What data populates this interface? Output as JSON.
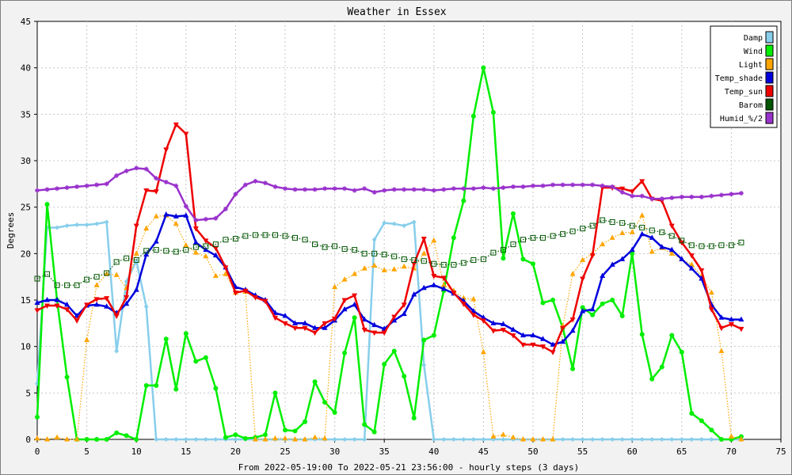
{
  "chart_data": {
    "type": "line",
    "title": "Weather in Essex",
    "ylabel": "Degrees",
    "xlabel": "From 2022-05-19:00 To 2022-05-21 23:56:00 - hourly steps (3 days)",
    "xlim": [
      0,
      75
    ],
    "ylim": [
      0,
      45
    ],
    "x_ticks": [
      "0",
      "5",
      "10",
      "15",
      "20",
      "25",
      "30",
      "35",
      "40",
      "45",
      "50",
      "55",
      "60",
      "65",
      "70",
      "75"
    ],
    "y_ticks": [
      "0",
      "5",
      "10",
      "15",
      "20",
      "25",
      "30",
      "35",
      "40",
      "45"
    ],
    "grid": true,
    "legend_position": "top-right",
    "series": [
      {
        "name": "Damp",
        "color": "#87ceeb",
        "style": "solid",
        "marker": "diamond",
        "values": [
          6.0,
          22.8,
          22.8,
          23.0,
          23.1,
          23.1,
          23.2,
          23.4,
          9.5,
          17.0,
          19.2,
          14.3,
          0,
          0,
          0,
          0,
          0,
          0,
          0,
          0,
          0,
          0,
          0,
          0,
          0,
          0,
          0,
          0,
          0,
          0,
          0,
          0,
          0,
          0,
          21.5,
          23.3,
          23.2,
          23.0,
          23.4,
          8.0,
          0,
          0,
          0,
          0,
          0,
          0,
          0,
          0,
          0,
          0,
          0,
          0,
          0,
          0,
          0,
          0,
          0,
          0,
          0,
          0,
          0,
          0,
          0,
          0,
          0,
          0,
          0,
          0,
          0,
          0,
          0,
          0
        ]
      },
      {
        "name": "Wind",
        "color": "#00ee00",
        "style": "solid",
        "marker": "circle",
        "values": [
          2.4,
          25.3,
          15.0,
          6.7,
          0,
          0,
          0,
          0,
          0.7,
          0.4,
          0,
          5.8,
          5.8,
          10.8,
          5.4,
          11.4,
          8.4,
          8.8,
          5.5,
          0.2,
          0.5,
          0.1,
          0.2,
          0.5,
          5.0,
          1.0,
          0.9,
          1.9,
          6.2,
          4.0,
          2.9,
          9.3,
          13.1,
          1.6,
          0.8,
          8.1,
          9.5,
          6.8,
          2.3,
          10.7,
          11.2,
          16.0,
          21.7,
          25.7,
          34.8,
          40.0,
          35.2,
          19.5,
          24.3,
          19.4,
          18.9,
          14.7,
          15.0,
          12.0,
          7.6,
          14.2,
          13.4,
          14.6,
          15.0,
          13.3,
          20.0,
          11.3,
          6.5,
          7.8,
          11.2,
          9.4,
          2.8,
          2.0,
          1.0,
          0,
          0,
          0.3
        ]
      },
      {
        "name": "Light",
        "color": "#ffa500",
        "style": "dotted",
        "marker": "triangle",
        "values": [
          0.1,
          0,
          0.2,
          0,
          0,
          10.7,
          16.6,
          17.8,
          17.7,
          16.3,
          20.0,
          22.7,
          24.0,
          24.1,
          23.2,
          20.9,
          20.1,
          19.7,
          17.6,
          17.8,
          15.8,
          15.9,
          0,
          0,
          0.1,
          0.1,
          0,
          0,
          0.2,
          0.1,
          16.4,
          17.2,
          17.8,
          18.4,
          18.7,
          18.2,
          18.3,
          18.6,
          18.4,
          20.0,
          21.4,
          16.6,
          16.0,
          15.2,
          15.1,
          9.4,
          0.3,
          0.5,
          0.2,
          0,
          0,
          0,
          0,
          12.2,
          17.8,
          19.3,
          20.0,
          21.0,
          21.7,
          22.2,
          22.3,
          24.1,
          20.2,
          20.6,
          20.0,
          19.4,
          18.8,
          17.6,
          15.8,
          9.5,
          0.3,
          0
        ]
      },
      {
        "name": "Temp_shade",
        "color": "#0000dd",
        "style": "solid",
        "marker": "triangle",
        "values": [
          14.7,
          15.0,
          15.0,
          14.5,
          13.3,
          14.4,
          14.5,
          14.3,
          13.6,
          14.6,
          16.1,
          19.9,
          21.3,
          24.2,
          24.0,
          24.1,
          21.2,
          20.4,
          19.8,
          18.5,
          16.4,
          16.1,
          15.5,
          15.0,
          13.6,
          13.3,
          12.5,
          12.5,
          12.0,
          12.0,
          12.8,
          14.0,
          14.5,
          12.9,
          12.3,
          11.9,
          12.8,
          13.5,
          15.6,
          16.3,
          16.6,
          16.2,
          15.7,
          14.9,
          13.8,
          13.1,
          12.5,
          12.4,
          11.8,
          11.2,
          11.2,
          10.8,
          10.2,
          10.5,
          11.7,
          13.8,
          14.0,
          17.6,
          18.8,
          19.4,
          20.4,
          22.1,
          21.7,
          20.7,
          20.4,
          19.4,
          18.4,
          17.3,
          14.5,
          13.1,
          12.9,
          12.9
        ]
      },
      {
        "name": "Temp_sun",
        "color": "#ee0000",
        "style": "solid",
        "marker": "triangle-down",
        "values": [
          13.9,
          14.4,
          14.4,
          14.0,
          12.8,
          14.5,
          15.1,
          15.2,
          13.3,
          15.3,
          23.0,
          26.8,
          26.7,
          31.2,
          33.9,
          32.9,
          22.7,
          21.4,
          20.6,
          18.5,
          15.8,
          16.0,
          15.3,
          14.9,
          13.1,
          12.5,
          12.0,
          12.0,
          11.5,
          12.5,
          13.0,
          15.0,
          15.5,
          11.8,
          11.5,
          11.5,
          13.2,
          14.5,
          18.9,
          21.6,
          17.6,
          17.4,
          15.8,
          14.6,
          13.4,
          12.8,
          11.7,
          11.8,
          11.2,
          10.2,
          10.2,
          10.0,
          9.4,
          12.0,
          12.9,
          17.3,
          19.8,
          27.1,
          27.1,
          27.0,
          26.7,
          27.8,
          25.9,
          25.7,
          23.0,
          21.2,
          19.8,
          18.2,
          14.0,
          12.0,
          12.4,
          11.9
        ]
      },
      {
        "name": "Barom",
        "color": "#005500",
        "style": "dotted",
        "marker": "square",
        "values": [
          17.3,
          17.8,
          16.6,
          16.6,
          16.6,
          17.2,
          17.5,
          17.9,
          19.1,
          19.5,
          19.3,
          20.3,
          20.4,
          20.3,
          20.2,
          20.4,
          20.7,
          20.8,
          21.0,
          21.5,
          21.6,
          21.9,
          22.0,
          22.0,
          22.0,
          21.9,
          21.7,
          21.5,
          21.0,
          20.7,
          20.8,
          20.5,
          20.4,
          20.0,
          20.0,
          19.9,
          19.7,
          19.4,
          19.3,
          19.2,
          18.9,
          18.8,
          18.8,
          19.0,
          19.3,
          19.4,
          20.1,
          20.4,
          21.0,
          21.5,
          21.7,
          21.7,
          21.9,
          22.1,
          22.4,
          22.7,
          23.0,
          23.6,
          23.4,
          23.3,
          23.0,
          22.8,
          22.5,
          22.3,
          21.9,
          21.4,
          20.9,
          20.8,
          20.8,
          20.9,
          20.9,
          21.2
        ]
      },
      {
        "name": "Humid_%/2",
        "color": "#9932cc",
        "style": "solid",
        "marker": "star",
        "values": [
          26.8,
          26.9,
          27.0,
          27.1,
          27.2,
          27.3,
          27.4,
          27.5,
          28.4,
          28.9,
          29.2,
          29.1,
          28.1,
          27.7,
          27.3,
          25.1,
          23.6,
          23.7,
          23.8,
          24.8,
          26.4,
          27.4,
          27.8,
          27.6,
          27.2,
          27.0,
          26.9,
          26.9,
          26.9,
          27.0,
          27.0,
          27.0,
          26.8,
          27.0,
          26.6,
          26.8,
          26.9,
          26.9,
          26.9,
          26.9,
          26.8,
          26.9,
          27.0,
          27.0,
          27.0,
          27.1,
          27.0,
          27.1,
          27.2,
          27.2,
          27.3,
          27.3,
          27.4,
          27.4,
          27.4,
          27.4,
          27.4,
          27.3,
          27.2,
          26.6,
          26.2,
          26.2,
          25.9,
          25.9,
          26.0,
          26.1,
          26.1,
          26.1,
          26.2,
          26.3,
          26.4,
          26.5
        ]
      }
    ]
  }
}
